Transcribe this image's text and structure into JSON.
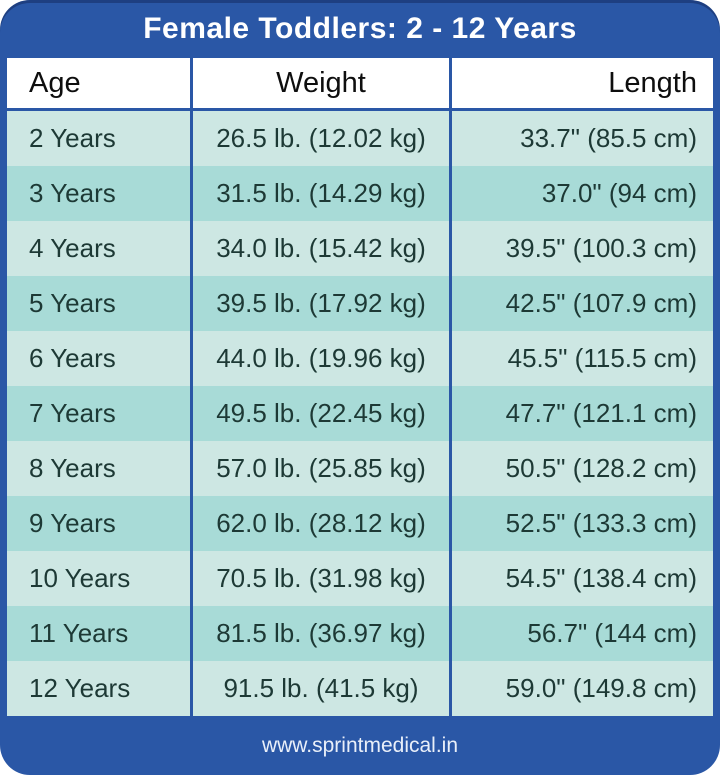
{
  "header": {
    "title": "Female Toddlers: 2 - 12 Years"
  },
  "chart_data": {
    "type": "table",
    "title": "Female Toddlers: 2 - 12 Years",
    "columns": [
      "Age",
      "Weight",
      "Length"
    ],
    "rows": [
      [
        "2 Years",
        "26.5 lb. (12.02 kg)",
        "33.7\" (85.5 cm)"
      ],
      [
        "3 Years",
        "31.5 lb. (14.29 kg)",
        "37.0\" (94 cm)"
      ],
      [
        "4 Years",
        "34.0 lb. (15.42 kg)",
        "39.5\" (100.3 cm)"
      ],
      [
        "5 Years",
        "39.5 lb. (17.92 kg)",
        "42.5\" (107.9 cm)"
      ],
      [
        "6 Years",
        "44.0 lb. (19.96 kg)",
        "45.5\" (115.5 cm)"
      ],
      [
        "7 Years",
        "49.5 lb. (22.45 kg)",
        "47.7\" (121.1 cm)"
      ],
      [
        "8 Years",
        "57.0 lb. (25.85 kg)",
        "50.5\" (128.2 cm)"
      ],
      [
        "9 Years",
        "62.0 lb. (28.12 kg)",
        "52.5\" (133.3 cm)"
      ],
      [
        "10 Years",
        "70.5 lb. (31.98 kg)",
        "54.5\" (138.4 cm)"
      ],
      [
        "11 Years",
        "81.5 lb. (36.97 kg)",
        "56.7\" (144 cm)"
      ],
      [
        "12 Years",
        "91.5 lb. (41.5 kg)",
        "59.0\" (149.8 cm)"
      ]
    ]
  },
  "footer": {
    "website": "www.sprintmedical.in"
  },
  "colors": {
    "frame_blue": "#2a57a6",
    "row_light": "#cde7e3",
    "row_dark": "#a8dbd7",
    "header_row_bg": "#ffffff",
    "data_text": "#1d3935",
    "title_text": "#ffffff"
  }
}
